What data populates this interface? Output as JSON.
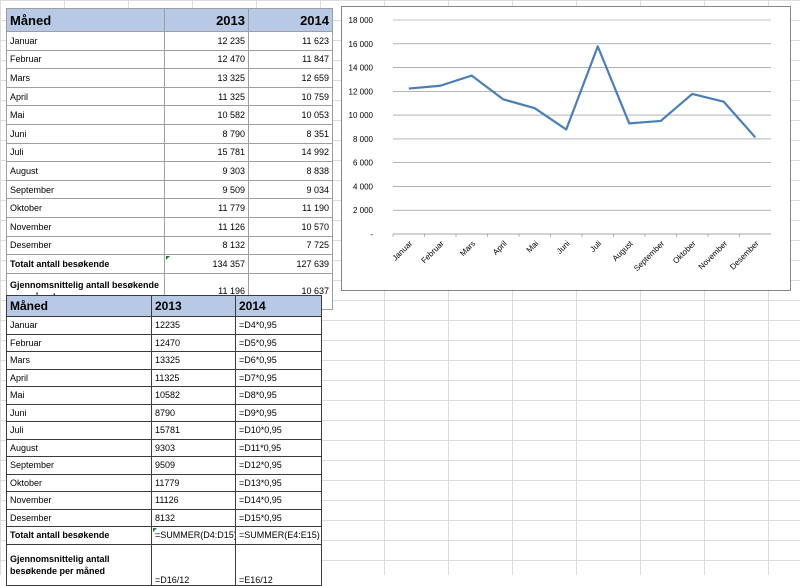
{
  "table1": {
    "headers": [
      "Måned",
      "2013",
      "2014"
    ],
    "rows": [
      [
        "Januar",
        "12 235",
        "11 623"
      ],
      [
        "Februar",
        "12 470",
        "11 847"
      ],
      [
        "Mars",
        "13 325",
        "12 659"
      ],
      [
        "April",
        "11 325",
        "10 759"
      ],
      [
        "Mai",
        "10 582",
        "10 053"
      ],
      [
        "Juni",
        "8 790",
        "8 351"
      ],
      [
        "Juli",
        "15 781",
        "14 992"
      ],
      [
        "August",
        "9 303",
        "8 838"
      ],
      [
        "September",
        "9 509",
        "9 034"
      ],
      [
        "Oktober",
        "11 779",
        "11 190"
      ],
      [
        "November",
        "11 126",
        "10 570"
      ],
      [
        "Desember",
        "8 132",
        "7 725"
      ]
    ],
    "total": [
      "Totalt antall besøkende",
      "134 357",
      "127 639"
    ],
    "average": [
      "Gjennomsnittelig antall besøkende per måned",
      "11 196",
      "10 637"
    ]
  },
  "table2": {
    "headers": [
      "Måned",
      "2013",
      "2014"
    ],
    "rows": [
      [
        "Januar",
        "12235",
        "=D4*0,95"
      ],
      [
        "Februar",
        "12470",
        "=D5*0,95"
      ],
      [
        "Mars",
        "13325",
        "=D6*0,95"
      ],
      [
        "April",
        "11325",
        "=D7*0,95"
      ],
      [
        "Mai",
        "10582",
        "=D8*0,95"
      ],
      [
        "Juni",
        "8790",
        "=D9*0,95"
      ],
      [
        "Juli",
        "15781",
        "=D10*0,95"
      ],
      [
        "August",
        "9303",
        "=D11*0,95"
      ],
      [
        "September",
        "9509",
        "=D12*0,95"
      ],
      [
        "Oktober",
        "11779",
        "=D13*0,95"
      ],
      [
        "November",
        "11126",
        "=D14*0,95"
      ],
      [
        "Desember",
        "8132",
        "=D15*0,95"
      ]
    ],
    "total": [
      "Totalt antall besøkende",
      "=SUMMER(D4:D15)",
      "=SUMMER(E4:E15)"
    ],
    "average": [
      "Gjennomsnittelig antall besøkende per måned",
      "=D16/12",
      "=E16/12"
    ]
  },
  "chart_data": {
    "type": "line",
    "title": "",
    "xlabel": "",
    "ylabel": "",
    "categories": [
      "Januar",
      "Februar",
      "Mars",
      "April",
      "Mai",
      "Juni",
      "Juli",
      "August",
      "September",
      "Oktober",
      "November",
      "Desember"
    ],
    "values": [
      12235,
      12470,
      13325,
      11325,
      10582,
      8790,
      15781,
      9303,
      9509,
      11779,
      11126,
      8132
    ],
    "ylim": [
      0,
      18000
    ],
    "yticks": [
      0,
      2000,
      4000,
      6000,
      8000,
      10000,
      12000,
      14000,
      16000,
      18000
    ],
    "ytick_labels": [
      "-",
      "2 000",
      "4 000",
      "6 000",
      "8 000",
      "10 000",
      "12 000",
      "14 000",
      "16 000",
      "18 000"
    ],
    "grid": true,
    "legend": "none",
    "line_color": "#4a7ebb",
    "grid_color": "#868686"
  },
  "colors": {
    "header_fill": "#b7c9e4",
    "error_indicator": "#1e7b3a"
  }
}
